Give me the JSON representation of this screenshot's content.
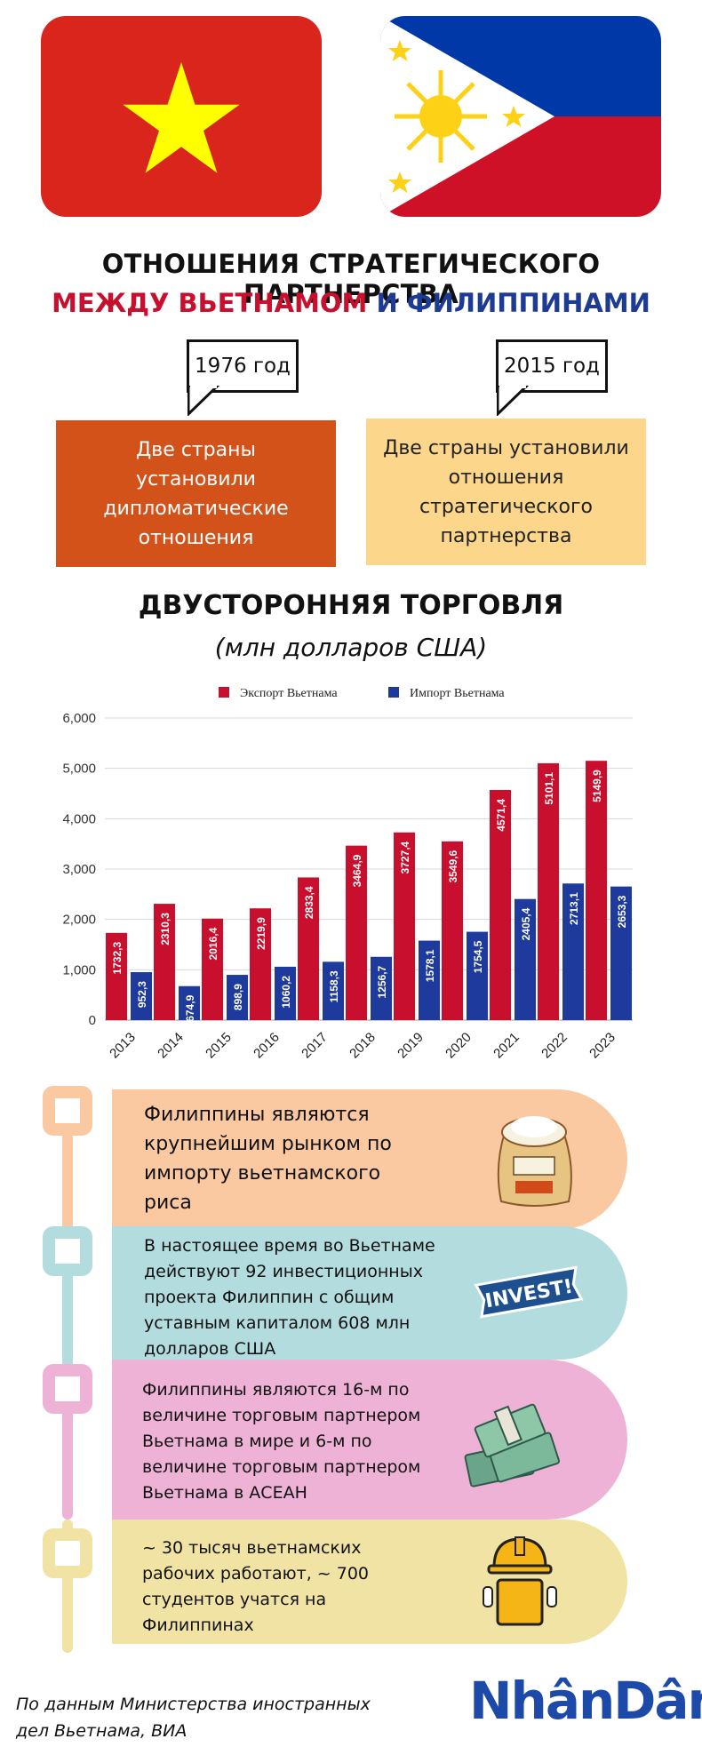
{
  "title": {
    "line1": "ОТНОШЕНИЯ СТРАТЕГИЧЕСКОГО ПАРТНЕРСТВА",
    "line2_part1": "МЕЖДУ ВЬЕТНАМОМ",
    "line2_part2": "И ФИЛИППИНАМИ"
  },
  "milestones": [
    {
      "year": "1976 год",
      "text": "Две страны установили дипломатические отношения"
    },
    {
      "year": "2015 год",
      "text": "Две страны установили отношения стратегического партнерства"
    }
  ],
  "trade": {
    "title": "ДВУСТОРОННЯЯ ТОРГОВЛЯ",
    "subtitle": "(млн долларов США)"
  },
  "chart_data": {
    "type": "bar",
    "categories": [
      "2013",
      "2014",
      "2015",
      "2016",
      "2017",
      "2018",
      "2019",
      "2020",
      "2021",
      "2022",
      "2023"
    ],
    "series": [
      {
        "name": "Экспорт Вьетнама",
        "values": [
          1732.3,
          2310.3,
          2016.4,
          2219.9,
          2833.4,
          3464.9,
          3727.4,
          3549.6,
          4571.4,
          5101.1,
          5149.9
        ],
        "labels": [
          "1732,3",
          "2310,3",
          "2016,4",
          "2219,9",
          "2833,4",
          "3464,9",
          "3727,4",
          "3549,6",
          "4571,4",
          "5101,1",
          "5149,9"
        ],
        "color": "#c8102e"
      },
      {
        "name": "Импорт Вьетнама",
        "values": [
          952.3,
          674.9,
          898.9,
          1060.2,
          1158.3,
          1256.7,
          1578.1,
          1754.5,
          2405.4,
          2713.1,
          2653.3
        ],
        "labels": [
          "952,3",
          "674,9",
          "898,9",
          "1060,2",
          "1158,3",
          "1256,7",
          "1578,1",
          "1754,5",
          "2405,4",
          "2713,1",
          "2653,3"
        ],
        "color": "#1d3a9c"
      }
    ],
    "ylim": [
      0,
      6000
    ],
    "yticks": [
      0,
      1000,
      2000,
      3000,
      4000,
      5000,
      6000
    ],
    "ytick_labels": [
      "0",
      "1,000",
      "2,000",
      "3,000",
      "4,000",
      "5,000",
      "6,000"
    ],
    "grid": true,
    "legend": "top-center"
  },
  "facts": [
    {
      "text": "Филиппины являются крупнейшим рынком по импорту вьетнамского риса",
      "icon": "rice-bag-icon",
      "color": "#fac9a1",
      "accent": "#fac9a1"
    },
    {
      "text": "В настоящее время во Вьетнаме действуют 92 инвестиционных проекта Филиппин с общим уставным капиталом 608 млн долларов США",
      "icon": "invest-badge-icon",
      "badge_text": "INVEST!",
      "color": "#b3dcde",
      "accent": "#b3dcde"
    },
    {
      "text": "Филиппины являются 16-м по величине торговым партнером Вьетнама в мире и 6-м по величине торговым партнером Вьетнама в АСЕАН",
      "icon": "money-stack-icon",
      "color": "#eeb2d6",
      "accent": "#eeb2d6"
    },
    {
      "text": "~ 30 тысяч вьетнамских рабочих работают, ~ 700 студентов учатся на Филиппинах",
      "icon": "worker-icon",
      "color": "#f0e3a4",
      "accent": "#f0e3a4"
    }
  ],
  "source": {
    "line1": "По данным Министерства иностранных",
    "line2": "дел Вьетнама, ВИА"
  },
  "logo": "NhânDân",
  "colors": {
    "vn_red": "#da251d",
    "vn_star": "#ffff00",
    "ph_blue": "#0038a8",
    "ph_red": "#ce1126",
    "ph_sun": "#fcd116"
  }
}
